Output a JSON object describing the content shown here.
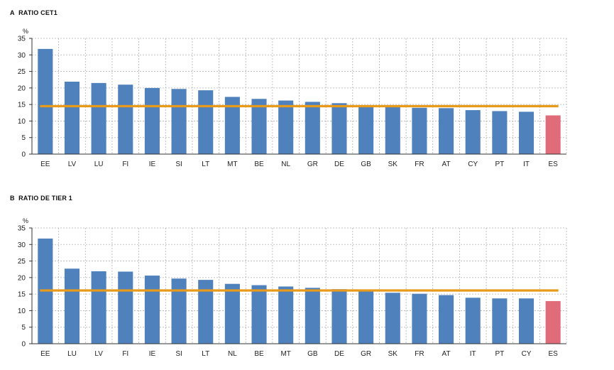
{
  "chart_data": [
    {
      "type": "bar",
      "panel_label": "A",
      "title": "RATIO CET1",
      "ylabel": "%",
      "ylim": [
        0,
        35
      ],
      "yticks": [
        0,
        5,
        10,
        15,
        20,
        25,
        30,
        35
      ],
      "grid": true,
      "categories": [
        "EE",
        "LV",
        "LU",
        "FI",
        "IE",
        "SI",
        "LT",
        "MT",
        "BE",
        "NL",
        "GR",
        "DE",
        "GB",
        "SK",
        "FR",
        "AT",
        "CY",
        "PT",
        "IT",
        "ES"
      ],
      "values": [
        31.8,
        21.9,
        21.5,
        21.0,
        20.0,
        19.7,
        19.3,
        17.3,
        16.7,
        16.2,
        15.8,
        15.4,
        14.6,
        14.6,
        14.0,
        13.9,
        13.3,
        13.0,
        12.8,
        11.7
      ],
      "average_line": 14.5,
      "highlight": "ES",
      "colors": {
        "bar": "#4f81bd",
        "highlight": "#e06c7a",
        "average": "#e89a1b",
        "grid": "#b0b0b0"
      }
    },
    {
      "type": "bar",
      "panel_label": "B",
      "title": "RATIO DE TIER 1",
      "ylabel": "%",
      "ylim": [
        0,
        35
      ],
      "yticks": [
        0,
        5,
        10,
        15,
        20,
        25,
        30,
        35
      ],
      "grid": true,
      "categories": [
        "EE",
        "LU",
        "LV",
        "FI",
        "IE",
        "SI",
        "LT",
        "NL",
        "BE",
        "MT",
        "GB",
        "DE",
        "GR",
        "SK",
        "FR",
        "AT",
        "IT",
        "PT",
        "CY",
        "ES"
      ],
      "values": [
        31.8,
        22.7,
        21.9,
        21.8,
        20.6,
        19.7,
        19.3,
        18.1,
        17.7,
        17.3,
        16.9,
        16.5,
        15.9,
        15.4,
        15.1,
        14.7,
        13.9,
        13.7,
        13.7,
        12.9
      ],
      "average_line": 16.1,
      "highlight": "ES",
      "colors": {
        "bar": "#4f81bd",
        "highlight": "#e06c7a",
        "average": "#e89a1b",
        "grid": "#b0b0b0"
      }
    }
  ]
}
